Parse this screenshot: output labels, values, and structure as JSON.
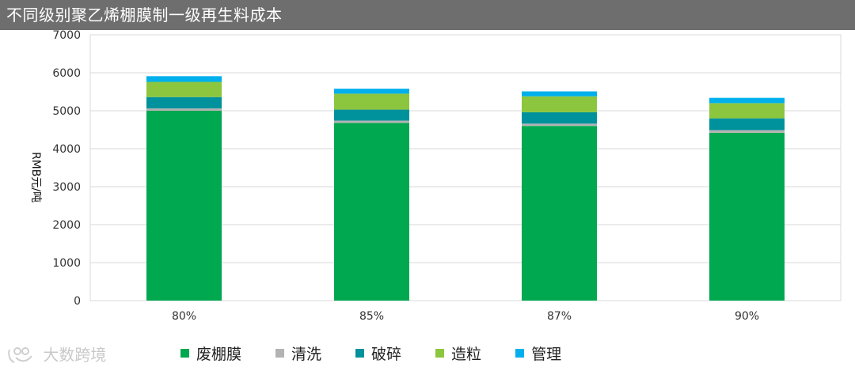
{
  "header": {
    "title": "不同级别聚乙烯棚膜制一级再生料成本"
  },
  "watermark": {
    "text": "大数跨境"
  },
  "chart_data": {
    "type": "bar",
    "stacked": true,
    "title": "不同级别聚乙烯棚膜制一级再生料成本",
    "xlabel": "",
    "ylabel": "RMB元/吨",
    "ylim": [
      0,
      7000
    ],
    "yticks": [
      0,
      1000,
      2000,
      3000,
      4000,
      5000,
      6000,
      7000
    ],
    "grid": true,
    "legend_position": "bottom",
    "categories": [
      "80%",
      "85%",
      "87%",
      "90%"
    ],
    "series": [
      {
        "name": "废棚膜",
        "color": "#00a84f",
        "values": [
          5000,
          4680,
          4600,
          4420
        ]
      },
      {
        "name": "清洗",
        "color": "#b3b3b3",
        "values": [
          60,
          60,
          60,
          70
        ]
      },
      {
        "name": "破碎",
        "color": "#00929c",
        "values": [
          300,
          290,
          300,
          310
        ]
      },
      {
        "name": "造粒",
        "color": "#8cc63e",
        "values": [
          400,
          420,
          420,
          400
        ]
      },
      {
        "name": "管理",
        "color": "#00b0ec",
        "values": [
          150,
          130,
          130,
          140
        ]
      }
    ]
  }
}
